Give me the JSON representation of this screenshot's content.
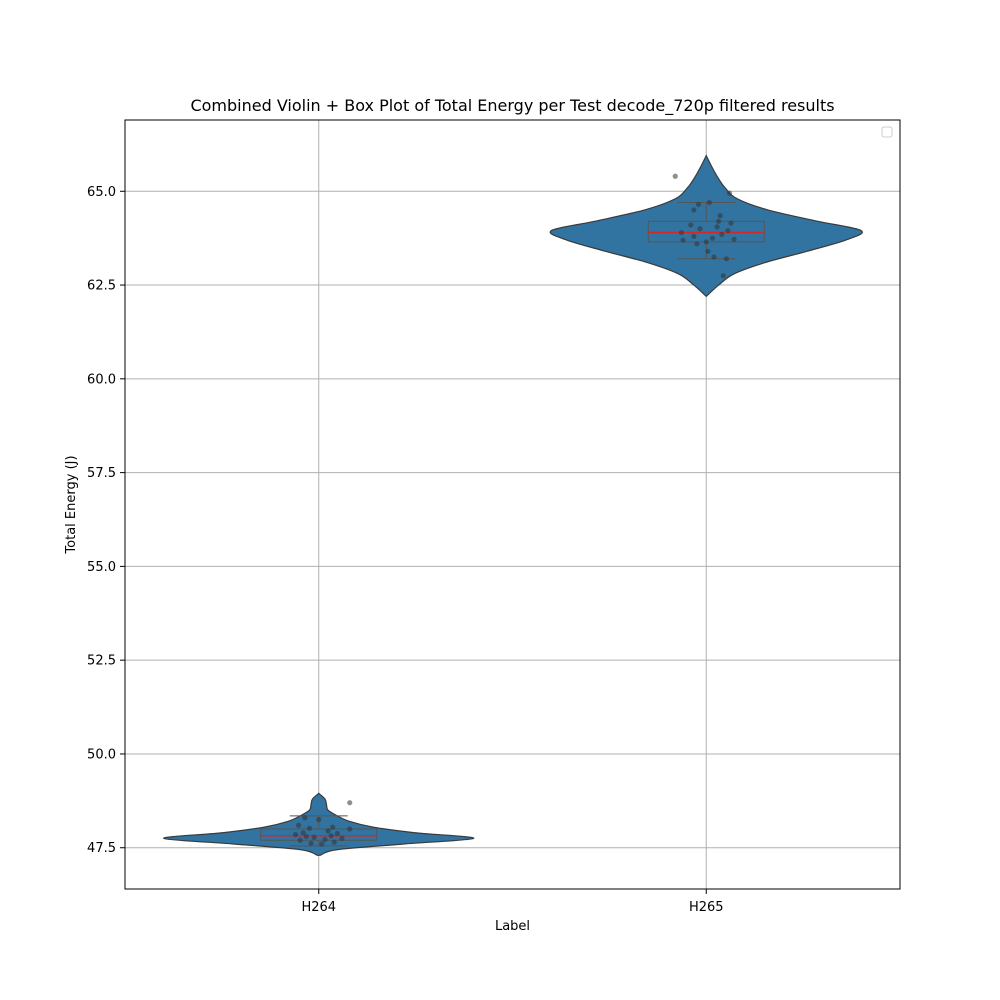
{
  "chart_data": {
    "type": "violin",
    "title": "Combined Violin + Box Plot of Total Energy per Test decode_720p filtered results",
    "xlabel": "Label",
    "ylabel": "Total Energy (J)",
    "categories": [
      "H264",
      "H265"
    ],
    "ylim": [
      46.4,
      66.9
    ],
    "yticks": [
      47.5,
      50.0,
      52.5,
      55.0,
      57.5,
      60.0,
      62.5,
      65.0
    ],
    "ytick_labels": [
      "47.5",
      "50.0",
      "52.5",
      "55.0",
      "57.5",
      "60.0",
      "62.5",
      "65.0"
    ],
    "grid": true,
    "legend": {
      "placement": "top-right",
      "entries": []
    },
    "colors": {
      "violin_fill": "#3274a1",
      "violin_edge": "#3a3a3a",
      "median": "#d62728",
      "whisker": "#555555",
      "points": "#333333",
      "grid": "#b0b0b0"
    },
    "groups": [
      {
        "label": "H264",
        "violin_range": [
          47.3,
          48.95
        ],
        "density": [
          [
            47.3,
            0.01
          ],
          [
            47.45,
            0.12
          ],
          [
            47.6,
            0.55
          ],
          [
            47.75,
            1.0
          ],
          [
            47.9,
            0.62
          ],
          [
            48.05,
            0.35
          ],
          [
            48.2,
            0.2
          ],
          [
            48.35,
            0.12
          ],
          [
            48.5,
            0.06
          ],
          [
            48.65,
            0.05
          ],
          [
            48.8,
            0.04
          ],
          [
            48.95,
            0.0
          ]
        ],
        "box": {
          "whisker_low": 47.55,
          "q1": 47.7,
          "median": 47.82,
          "q3": 48.0,
          "whisker_high": 48.35
        },
        "points": [
          [
            47.6,
            0.02
          ],
          [
            47.62,
            -0.05
          ],
          [
            47.65,
            0.1
          ],
          [
            47.7,
            -0.12
          ],
          [
            47.72,
            0.04
          ],
          [
            47.75,
            0.15
          ],
          [
            47.78,
            -0.03
          ],
          [
            47.8,
            -0.08
          ],
          [
            47.82,
            0.08
          ],
          [
            47.85,
            -0.15
          ],
          [
            47.88,
            0.12
          ],
          [
            47.9,
            -0.1
          ],
          [
            47.95,
            0.06
          ],
          [
            48.0,
            0.2
          ],
          [
            48.02,
            -0.06
          ],
          [
            48.05,
            0.09
          ],
          [
            48.1,
            -0.13
          ],
          [
            48.25,
            0.0
          ],
          [
            48.3,
            -0.09
          ],
          [
            48.7,
            0.2
          ]
        ]
      },
      {
        "label": "H265",
        "violin_range": [
          62.2,
          65.95
        ],
        "density": [
          [
            62.2,
            0.0
          ],
          [
            62.5,
            0.08
          ],
          [
            62.8,
            0.18
          ],
          [
            63.1,
            0.38
          ],
          [
            63.4,
            0.65
          ],
          [
            63.7,
            0.9
          ],
          [
            63.95,
            1.0
          ],
          [
            64.2,
            0.72
          ],
          [
            64.5,
            0.4
          ],
          [
            64.8,
            0.2
          ],
          [
            65.1,
            0.12
          ],
          [
            65.4,
            0.07
          ],
          [
            65.7,
            0.03
          ],
          [
            65.95,
            0.0
          ]
        ],
        "box": {
          "whisker_low": 63.2,
          "q1": 63.65,
          "median": 63.9,
          "q3": 64.2,
          "whisker_high": 64.7
        },
        "points": [
          [
            62.75,
            0.11
          ],
          [
            63.2,
            0.13
          ],
          [
            63.25,
            0.05
          ],
          [
            63.4,
            0.01
          ],
          [
            63.6,
            -0.06
          ],
          [
            63.65,
            0.0
          ],
          [
            63.7,
            -0.15
          ],
          [
            63.72,
            0.18
          ],
          [
            63.75,
            0.04
          ],
          [
            63.8,
            -0.08
          ],
          [
            63.85,
            0.1
          ],
          [
            63.9,
            -0.16
          ],
          [
            63.95,
            0.14
          ],
          [
            64.0,
            -0.04
          ],
          [
            64.05,
            0.07
          ],
          [
            64.1,
            -0.1
          ],
          [
            64.15,
            0.16
          ],
          [
            64.2,
            0.08
          ],
          [
            64.35,
            0.09
          ],
          [
            64.5,
            -0.08
          ],
          [
            64.65,
            -0.05
          ],
          [
            64.7,
            0.02
          ],
          [
            64.95,
            0.15
          ],
          [
            65.4,
            -0.2
          ]
        ]
      }
    ]
  }
}
